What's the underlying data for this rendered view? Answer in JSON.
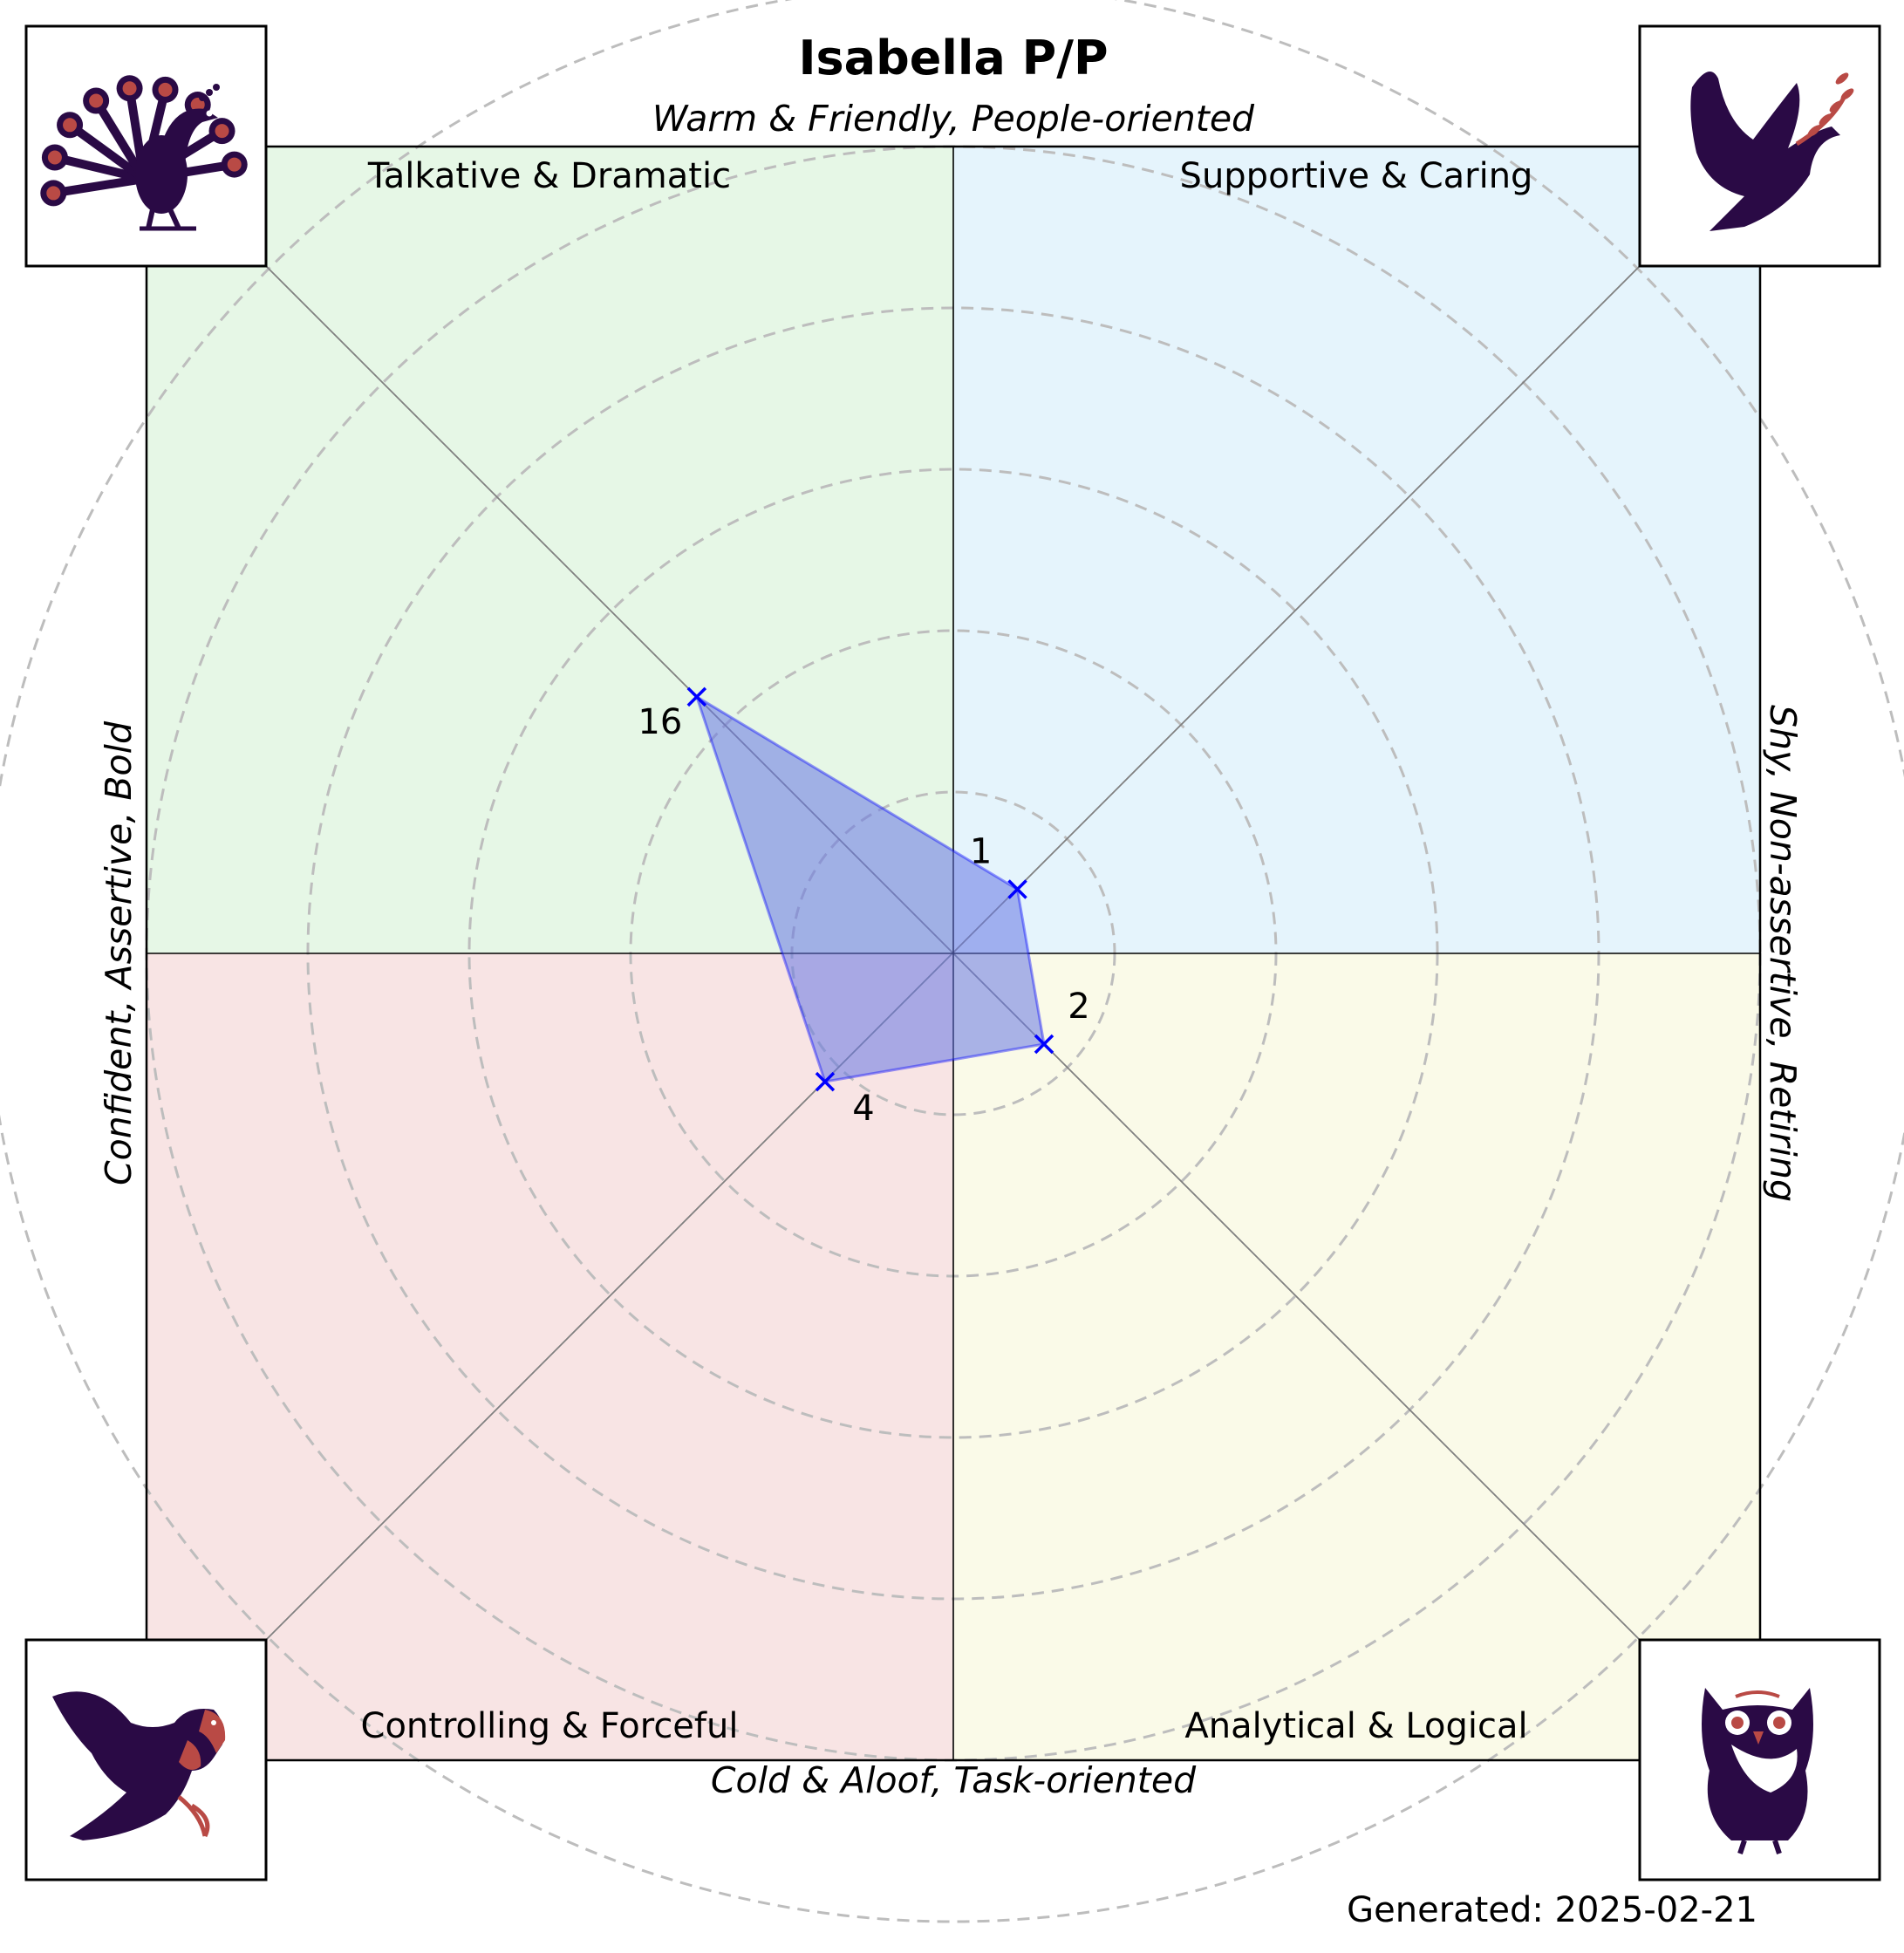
{
  "chart_data": {
    "type": "radar",
    "title": "Isabella P/P",
    "axis_labels": {
      "top": "Warm & Friendly, People-oriented",
      "bottom": "Cold & Aloof, Task-oriented",
      "left": "Confident, Assertive, Bold",
      "right": "Shy, Non-assertive, Retiring"
    },
    "quadrants": [
      {
        "label": "Talkative & Dramatic",
        "color": "#e6f7e6",
        "icon": "peacock-icon"
      },
      {
        "label": "Supportive & Caring",
        "color": "#e5f4fc",
        "icon": "dove-icon"
      },
      {
        "label": "Controlling & Forceful",
        "color": "#f8e4e4",
        "icon": "eagle-icon"
      },
      {
        "label": "Analytical & Logical",
        "color": "#fafae8",
        "icon": "owl-icon"
      }
    ],
    "series": [
      {
        "points": [
          {
            "direction": "top-left",
            "value": 16
          },
          {
            "direction": "top-right",
            "value": 1
          },
          {
            "direction": "bottom-right",
            "value": 2
          },
          {
            "direction": "bottom-left",
            "value": 4
          }
        ],
        "color": "#0000ff"
      }
    ],
    "grid_rings": 6,
    "grid": true
  },
  "footer": "Generated: 2025-02-21",
  "colors": {
    "icon_dark": "#2a0a45",
    "icon_accent": "#b94a45",
    "fill": "#6677e3",
    "marker": "#0000ff"
  }
}
